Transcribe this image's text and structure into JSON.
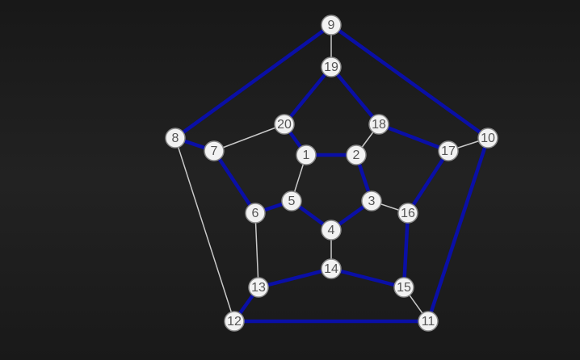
{
  "graph": {
    "nodes": [
      {
        "id": "1",
        "label": "1"
      },
      {
        "id": "2",
        "label": "2"
      },
      {
        "id": "3",
        "label": "3"
      },
      {
        "id": "4",
        "label": "4"
      },
      {
        "id": "5",
        "label": "5"
      },
      {
        "id": "6",
        "label": "6"
      },
      {
        "id": "7",
        "label": "7"
      },
      {
        "id": "8",
        "label": "8"
      },
      {
        "id": "9",
        "label": "9"
      },
      {
        "id": "10",
        "label": "10"
      },
      {
        "id": "11",
        "label": "11"
      },
      {
        "id": "12",
        "label": "12"
      },
      {
        "id": "13",
        "label": "13"
      },
      {
        "id": "14",
        "label": "14"
      },
      {
        "id": "15",
        "label": "15"
      },
      {
        "id": "16",
        "label": "16"
      },
      {
        "id": "17",
        "label": "17"
      },
      {
        "id": "18",
        "label": "18"
      },
      {
        "id": "19",
        "label": "19"
      },
      {
        "id": "20",
        "label": "20"
      }
    ],
    "edges": [
      {
        "source": "1",
        "target": "2",
        "highlighted": true
      },
      {
        "source": "2",
        "target": "3",
        "highlighted": true
      },
      {
        "source": "3",
        "target": "4",
        "highlighted": true
      },
      {
        "source": "4",
        "target": "5",
        "highlighted": true
      },
      {
        "source": "5",
        "target": "6",
        "highlighted": true
      },
      {
        "source": "6",
        "target": "7",
        "highlighted": true
      },
      {
        "source": "7",
        "target": "8",
        "highlighted": true
      },
      {
        "source": "8",
        "target": "9",
        "highlighted": true
      },
      {
        "source": "9",
        "target": "10",
        "highlighted": true
      },
      {
        "source": "10",
        "target": "11",
        "highlighted": true
      },
      {
        "source": "11",
        "target": "12",
        "highlighted": true
      },
      {
        "source": "12",
        "target": "13",
        "highlighted": true
      },
      {
        "source": "13",
        "target": "14",
        "highlighted": true
      },
      {
        "source": "14",
        "target": "15",
        "highlighted": true
      },
      {
        "source": "15",
        "target": "16",
        "highlighted": true
      },
      {
        "source": "16",
        "target": "17",
        "highlighted": true
      },
      {
        "source": "17",
        "target": "18",
        "highlighted": true
      },
      {
        "source": "18",
        "target": "19",
        "highlighted": true
      },
      {
        "source": "19",
        "target": "20",
        "highlighted": true
      },
      {
        "source": "20",
        "target": "1",
        "highlighted": true
      },
      {
        "source": "1",
        "target": "5",
        "highlighted": false
      },
      {
        "source": "2",
        "target": "18",
        "highlighted": false
      },
      {
        "source": "3",
        "target": "16",
        "highlighted": false
      },
      {
        "source": "4",
        "target": "14",
        "highlighted": false
      },
      {
        "source": "6",
        "target": "13",
        "highlighted": false
      },
      {
        "source": "7",
        "target": "20",
        "highlighted": false
      },
      {
        "source": "8",
        "target": "12",
        "highlighted": false
      },
      {
        "source": "9",
        "target": "19",
        "highlighted": false
      },
      {
        "source": "10",
        "target": "17",
        "highlighted": false
      },
      {
        "source": "11",
        "target": "15",
        "highlighted": false
      }
    ],
    "colors": {
      "highlighted_edge": "#0a0fa6",
      "plain_edge": "#c8c8c8",
      "node_fill": "#f2f2f2",
      "node_stroke": "#8a8a8a",
      "node_text": "#555555"
    }
  }
}
